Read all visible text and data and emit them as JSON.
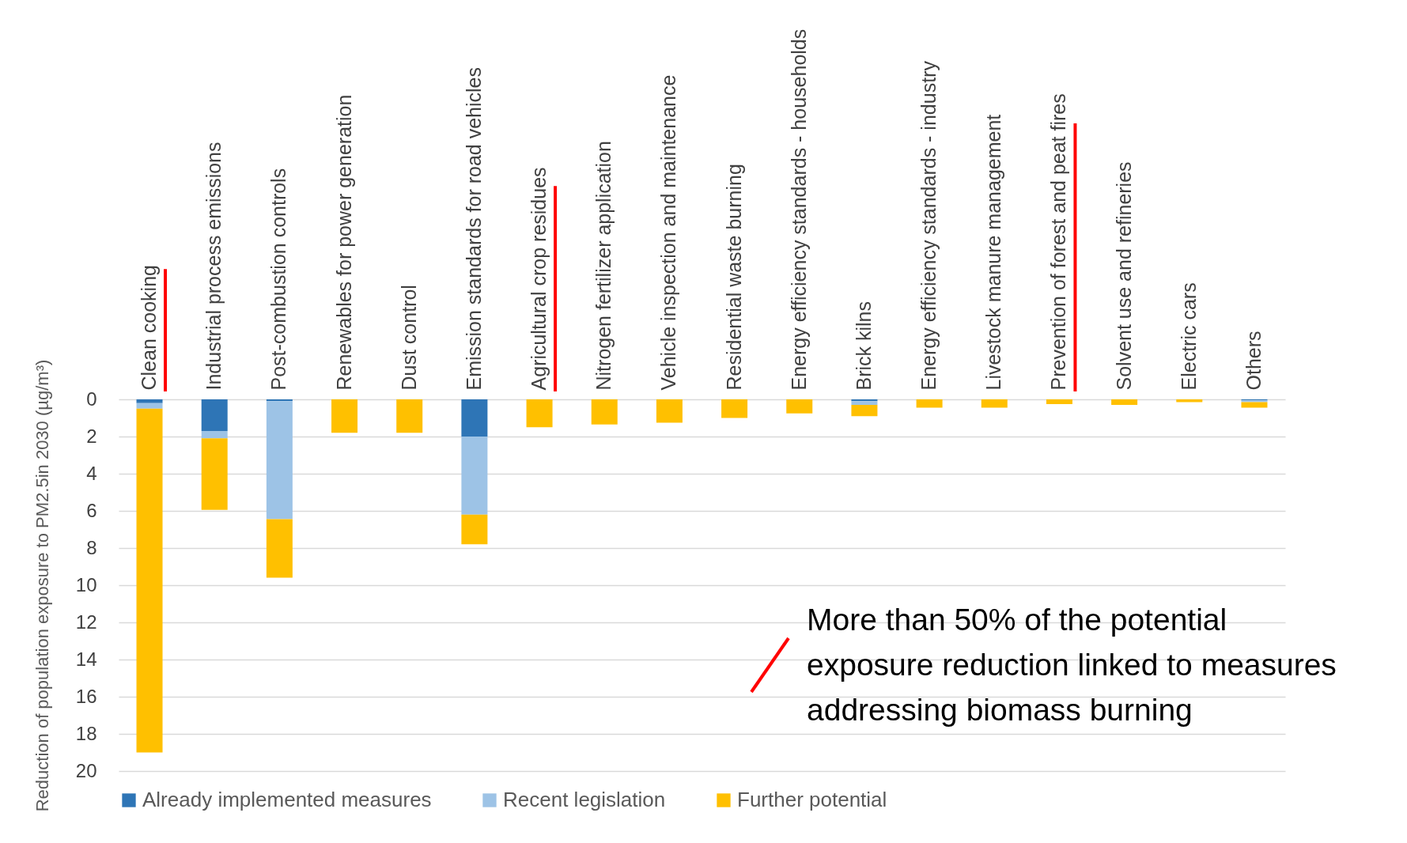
{
  "chart_data": {
    "type": "bar",
    "stacked": true,
    "ylabel": "Reduction of population exposure to PM2.5in 2030  (µg/m³)",
    "categories": [
      "Clean cooking",
      "Industrial process emissions",
      "Post-combustion controls",
      "Renewables for power generation",
      "Dust control",
      "Emission standards for road vehicles",
      "Agricultural crop residues",
      "Nitrogen fertilizer application",
      "Vehicle inspection and maintenance",
      "Residential waste burning",
      "Energy efficiency standards - households",
      "Brick kilns",
      "Energy efficiency standards - industry",
      "Livestock manure management",
      "Prevention of forest and peat fires",
      "Solvent use and refineries",
      "Electric cars",
      "Others"
    ],
    "series": [
      {
        "name": "Already implemented measures",
        "color": "#2e75b6",
        "values": [
          0.2,
          1.7,
          0.1,
          0,
          0,
          2.0,
          0,
          0,
          0,
          0,
          0,
          0.1,
          0,
          0,
          0,
          0,
          0,
          0.05
        ]
      },
      {
        "name": "Recent legislation",
        "color": "#9dc3e6",
        "values": [
          0.3,
          0.4,
          6.35,
          0,
          0,
          4.2,
          0,
          0,
          0,
          0,
          0,
          0.2,
          0,
          0,
          0,
          0,
          0,
          0.1
        ]
      },
      {
        "name": "Further potential",
        "color": "#ffc000",
        "values": [
          18.5,
          3.85,
          3.15,
          1.8,
          1.8,
          1.6,
          1.5,
          1.35,
          1.25,
          1.0,
          0.75,
          0.6,
          0.45,
          0.45,
          0.25,
          0.3,
          0.15,
          0.3
        ]
      }
    ],
    "ylim": [
      20,
      0
    ],
    "yticks": [
      0,
      2,
      4,
      6,
      8,
      10,
      12,
      14,
      16,
      18,
      20
    ],
    "grid": "y",
    "legend": "bottom",
    "annotations": [
      "More than 50% of the potential exposure reduction linked to measures addressing biomass burning"
    ]
  }
}
